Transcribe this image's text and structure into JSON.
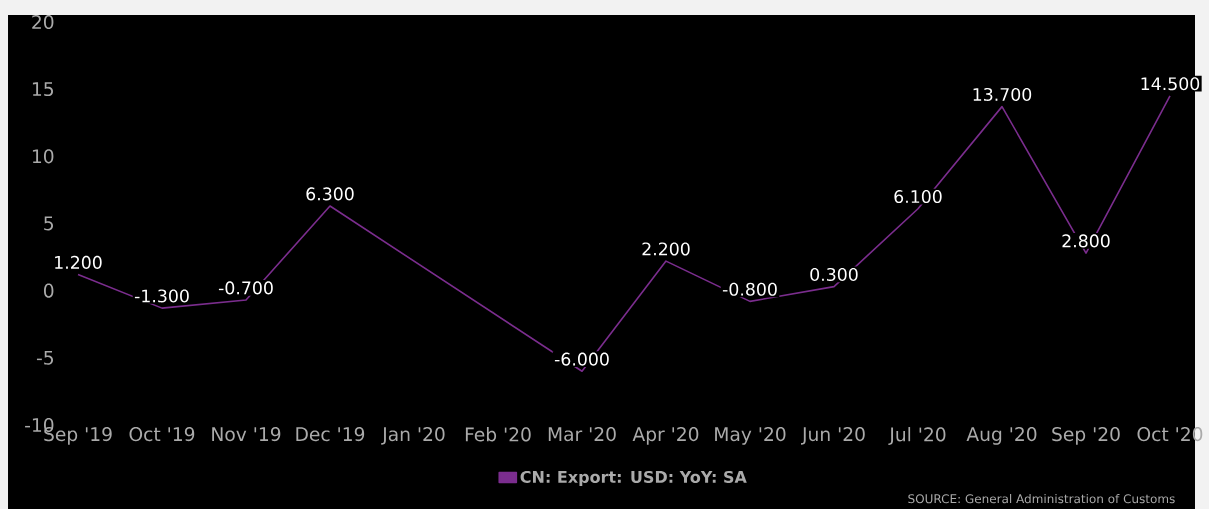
{
  "chart_data": {
    "type": "line",
    "categories": [
      "Sep '19",
      "Oct '19",
      "Nov '19",
      "Dec '19",
      "Jan '20",
      "Feb '20",
      "Mar '20",
      "Apr '20",
      "May '20",
      "Jun '20",
      "Jul '20",
      "Aug '20",
      "Sep '20",
      "Oct '20"
    ],
    "series": [
      {
        "name": "CN: Export: USD: YoY: SA",
        "color": "#7b2d8e",
        "values": [
          1.2,
          -1.3,
          -0.7,
          6.3,
          null,
          null,
          -6.0,
          2.2,
          -0.8,
          0.3,
          6.1,
          13.7,
          2.8,
          14.5
        ],
        "value_labels": [
          "1.200",
          "-1.300",
          "-0.700",
          "6.300",
          null,
          null,
          "-6.000",
          "2.200",
          "-0.800",
          "0.300",
          "6.100",
          "13.700",
          "2.800",
          "14.500"
        ]
      }
    ],
    "ylim": [
      -10,
      20
    ],
    "yticks": [
      -10,
      -5,
      0,
      5,
      10,
      15,
      20
    ],
    "grid": false,
    "legend": "bottom",
    "marker": "none",
    "line_style": "solid",
    "annotations": [
      "SOURCE: General Administration of Customs"
    ]
  }
}
